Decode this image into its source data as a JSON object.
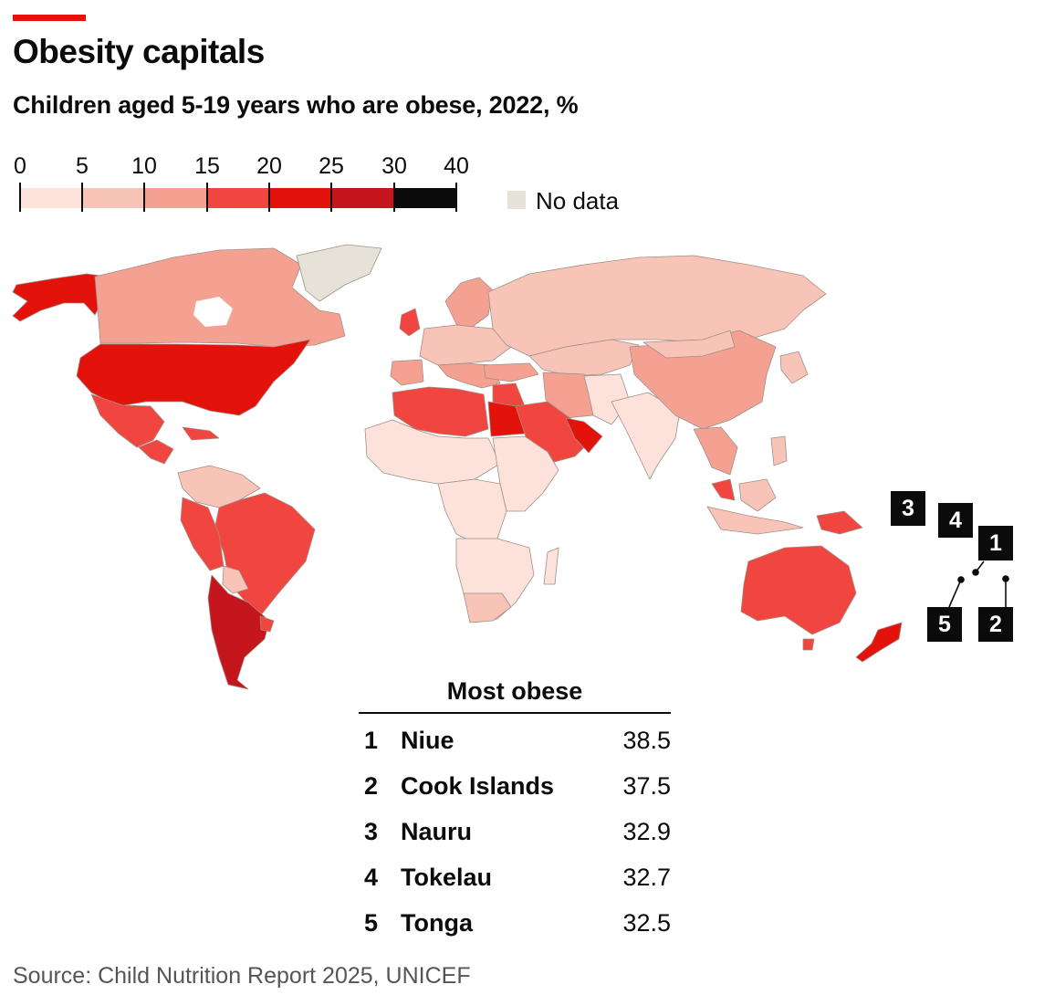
{
  "header": {
    "title": "Obesity capitals",
    "subtitle": "Children aged 5-19 years who are obese, 2022, %"
  },
  "legend": {
    "ticks": [
      "0",
      "5",
      "10",
      "15",
      "20",
      "25",
      "30",
      "40"
    ],
    "colors": [
      "#fde2dc",
      "#f9c4b8",
      "#f5a192",
      "#f1453f",
      "#e3120b",
      "#c4161c",
      "#0b0b0b"
    ],
    "no_data_label": "No data",
    "no_data_color": "#e6e2d7"
  },
  "map": {
    "border_color": "#a08f86",
    "callouts": [
      "3",
      "4",
      "1",
      "5",
      "2"
    ]
  },
  "ranking": {
    "heading": "Most obese",
    "rows": [
      {
        "rank": "1",
        "country": "Niue",
        "value": "38.5"
      },
      {
        "rank": "2",
        "country": "Cook Islands",
        "value": "37.5"
      },
      {
        "rank": "3",
        "country": "Nauru",
        "value": "32.9"
      },
      {
        "rank": "4",
        "country": "Tokelau",
        "value": "32.7"
      },
      {
        "rank": "5",
        "country": "Tonga",
        "value": "32.5"
      }
    ]
  },
  "source": "Source: Child Nutrition Report 2025, UNICEF"
}
